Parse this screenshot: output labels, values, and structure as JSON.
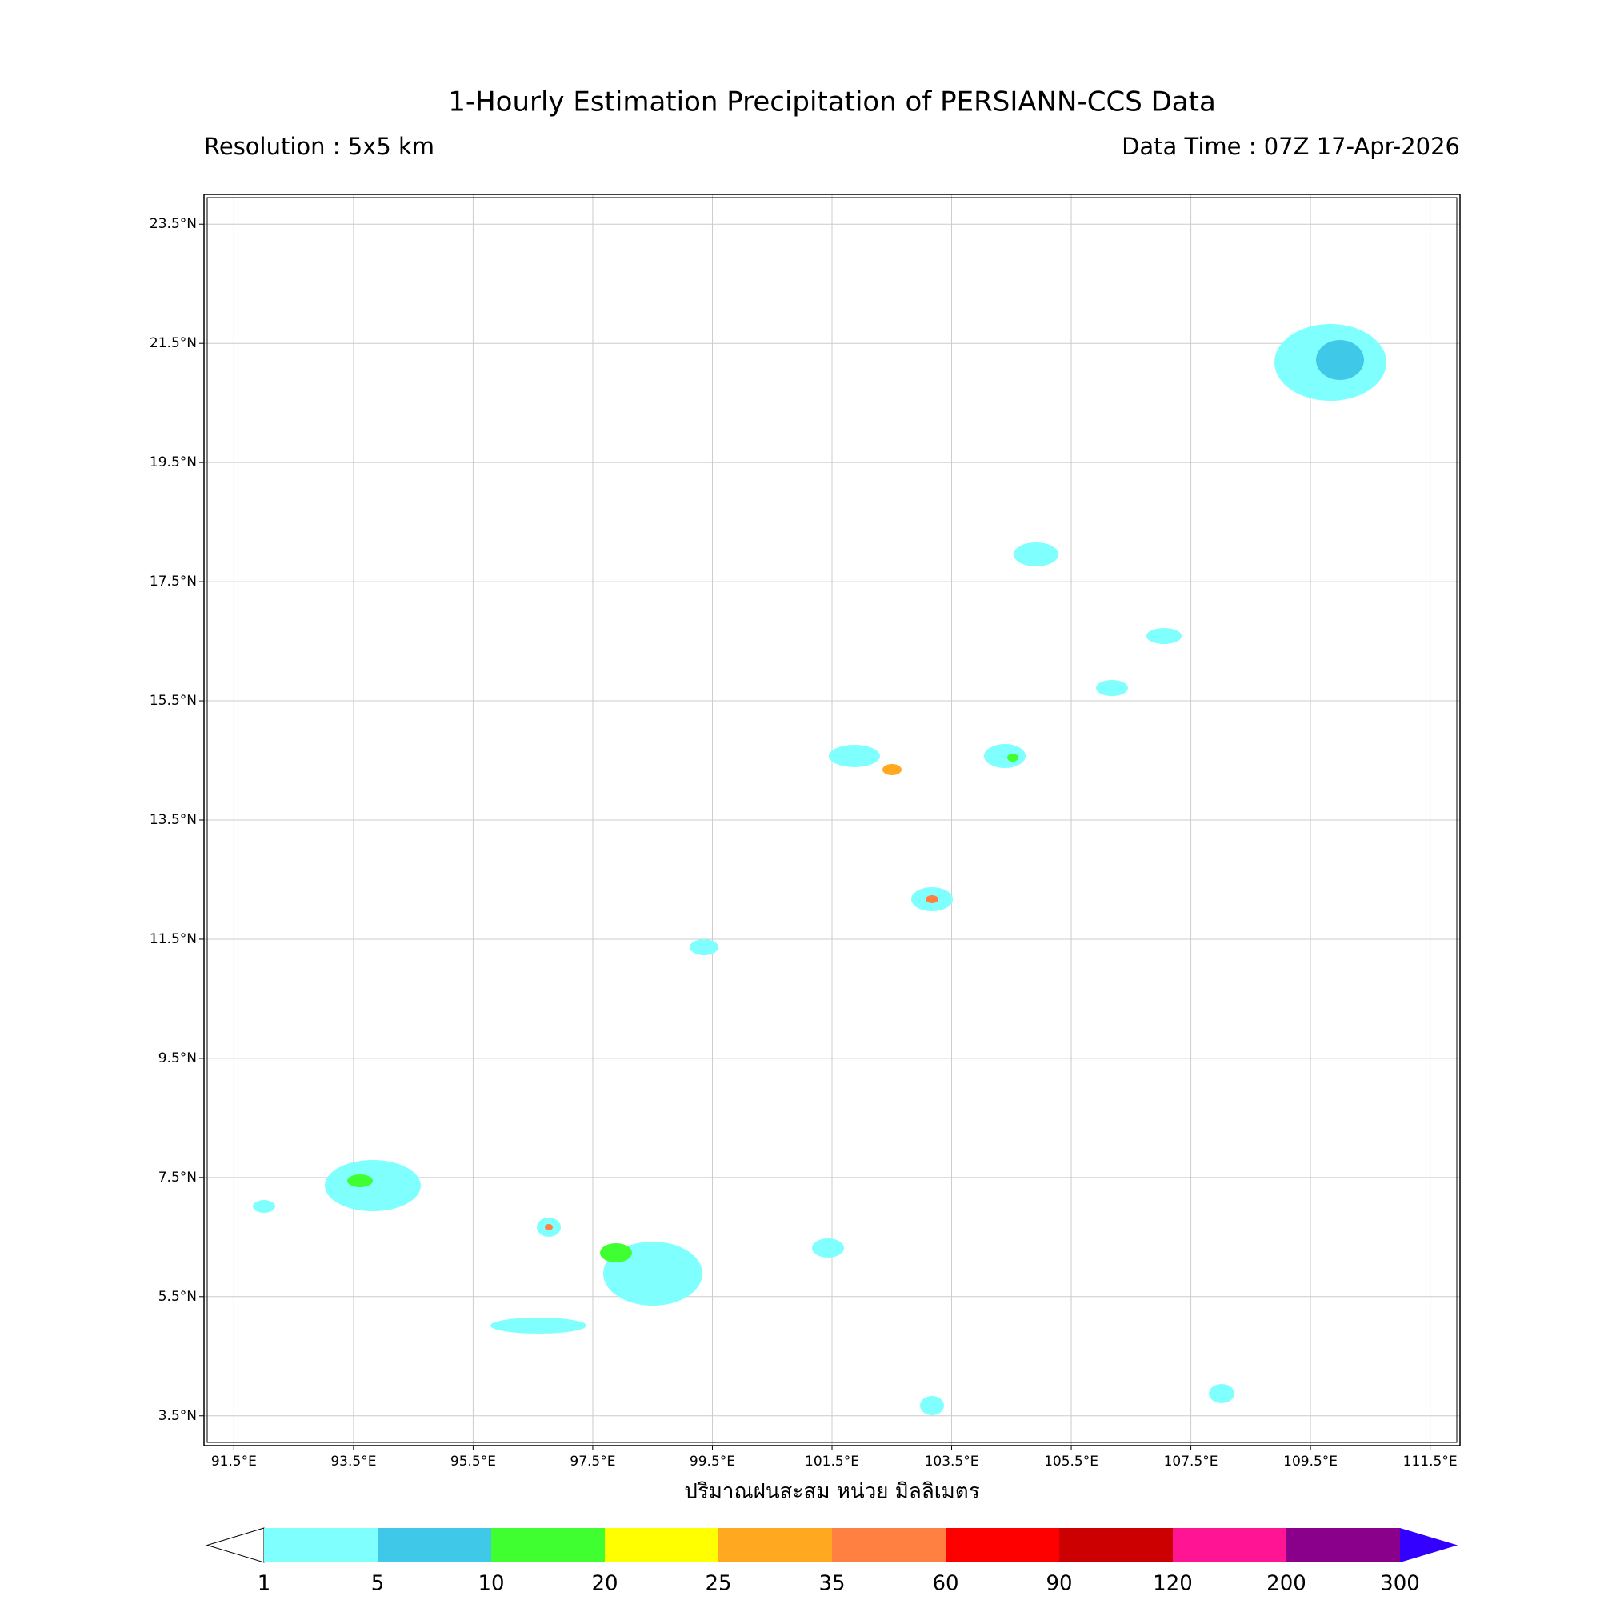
{
  "title": "1-Hourly Estimation Precipitation of PERSIANN-CCS Data",
  "subtitle_left": "Resolution : 5x5 km",
  "subtitle_right": "Data Time : 07Z 17-Apr-2026",
  "map": {
    "xlim": [
      91,
      112
    ],
    "ylim": [
      3,
      24
    ],
    "xticks": [
      {
        "value": 91.5,
        "label": "91.5°E"
      },
      {
        "value": 93.5,
        "label": "93.5°E"
      },
      {
        "value": 95.5,
        "label": "95.5°E"
      },
      {
        "value": 97.5,
        "label": "97.5°E"
      },
      {
        "value": 99.5,
        "label": "99.5°E"
      },
      {
        "value": 101.5,
        "label": "101.5°E"
      },
      {
        "value": 103.5,
        "label": "103.5°E"
      },
      {
        "value": 105.5,
        "label": "105.5°E"
      },
      {
        "value": 107.5,
        "label": "107.5°E"
      },
      {
        "value": 109.5,
        "label": "109.5°E"
      },
      {
        "value": 111.5,
        "label": "111.5°E"
      }
    ],
    "yticks": [
      {
        "value": 3.5,
        "label": "3.5°N"
      },
      {
        "value": 5.5,
        "label": "5.5°N"
      },
      {
        "value": 7.5,
        "label": "7.5°N"
      },
      {
        "value": 9.5,
        "label": "9.5°N"
      },
      {
        "value": 11.5,
        "label": "11.5°N"
      },
      {
        "value": 13.5,
        "label": "13.5°N"
      },
      {
        "value": 15.5,
        "label": "15.5°N"
      },
      {
        "value": 17.5,
        "label": "17.5°N"
      },
      {
        "value": 19.5,
        "label": "19.5°N"
      },
      {
        "value": 21.5,
        "label": "21.5°N"
      },
      {
        "value": 23.5,
        "label": "23.5°N"
      }
    ],
    "grid": true
  },
  "colorbar": {
    "label": "ปริมาณฝนสะสม หน่วย มิลลิเมตร",
    "levels": [
      1,
      5,
      10,
      20,
      25,
      35,
      60,
      90,
      120,
      200,
      300
    ],
    "colors": [
      "#80ffff",
      "#40c8e8",
      "#40ff30",
      "#ffff00",
      "#ffa820",
      "#ff8040",
      "#ff0000",
      "#cc0000",
      "#ff1493",
      "#8b008b",
      "#3300ff"
    ]
  }
}
